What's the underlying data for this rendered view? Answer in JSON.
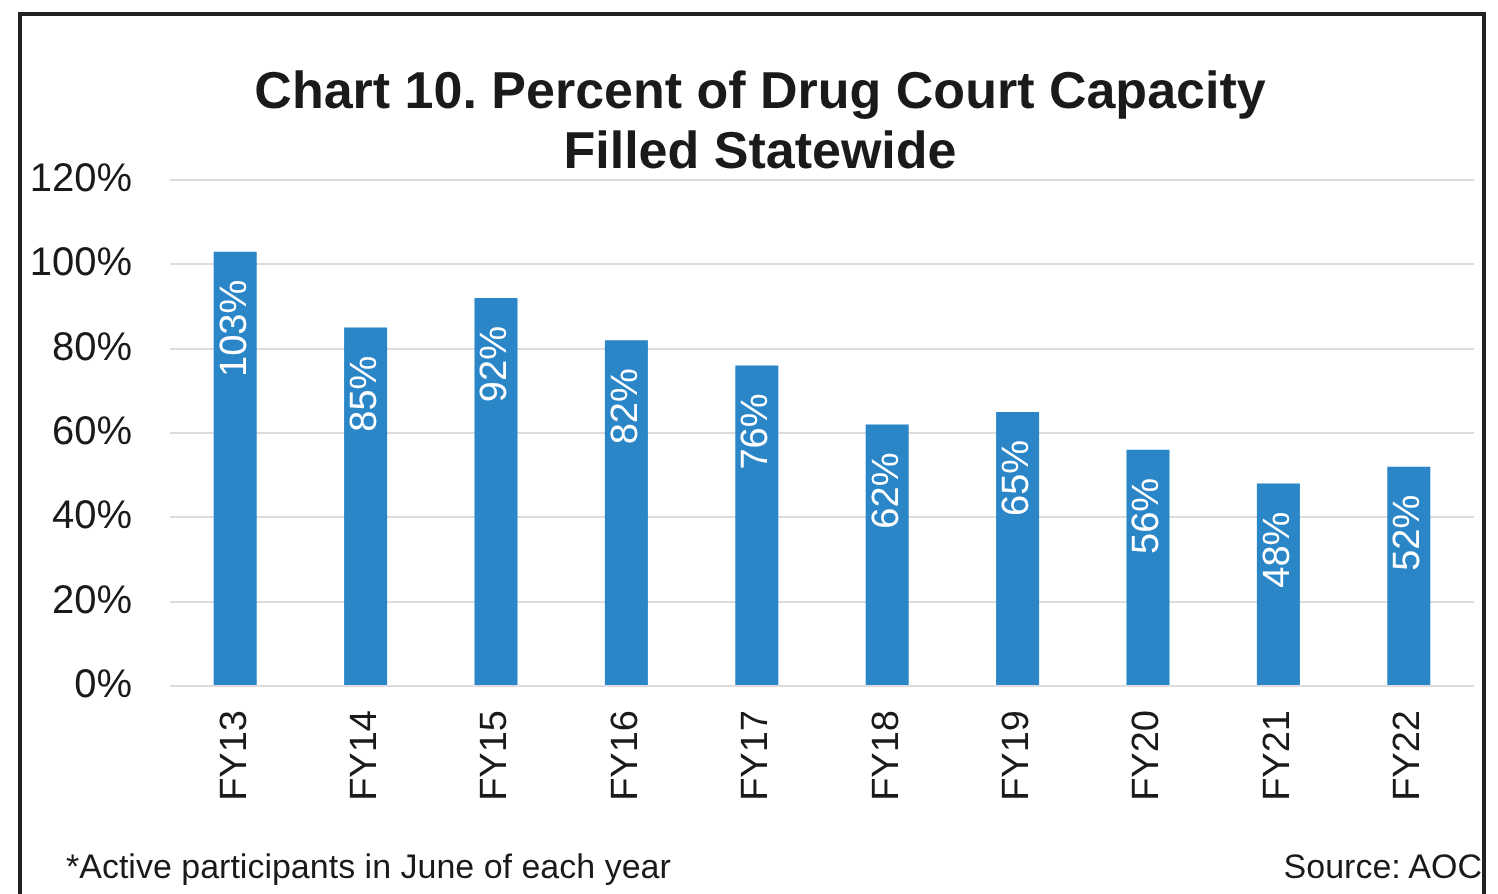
{
  "chart_data": {
    "type": "bar",
    "title": "Chart 10. Percent of Drug Court Capacity Filled Statewide",
    "categories": [
      "FY13",
      "FY14",
      "FY15",
      "FY16",
      "FY17",
      "FY18",
      "FY19",
      "FY20",
      "FY21",
      "FY22"
    ],
    "values": [
      103,
      85,
      92,
      82,
      76,
      62,
      65,
      56,
      48,
      52
    ],
    "value_labels": [
      "103%",
      "85%",
      "92%",
      "82%",
      "76%",
      "62%",
      "65%",
      "56%",
      "48%",
      "52%"
    ],
    "color": "#2b86c8",
    "ylim": [
      0,
      120
    ],
    "yticks": [
      {
        "value": 0,
        "label": "0%"
      },
      {
        "value": 20,
        "label": "20%"
      },
      {
        "value": 40,
        "label": "40%"
      },
      {
        "value": 60,
        "label": "60%"
      },
      {
        "value": 80,
        "label": "80%"
      },
      {
        "value": 100,
        "label": "100%"
      },
      {
        "value": 120,
        "label": "120%"
      }
    ],
    "grid": "y",
    "annotations": [
      "*Active participants in June of each year",
      "Source: AOC"
    ]
  }
}
